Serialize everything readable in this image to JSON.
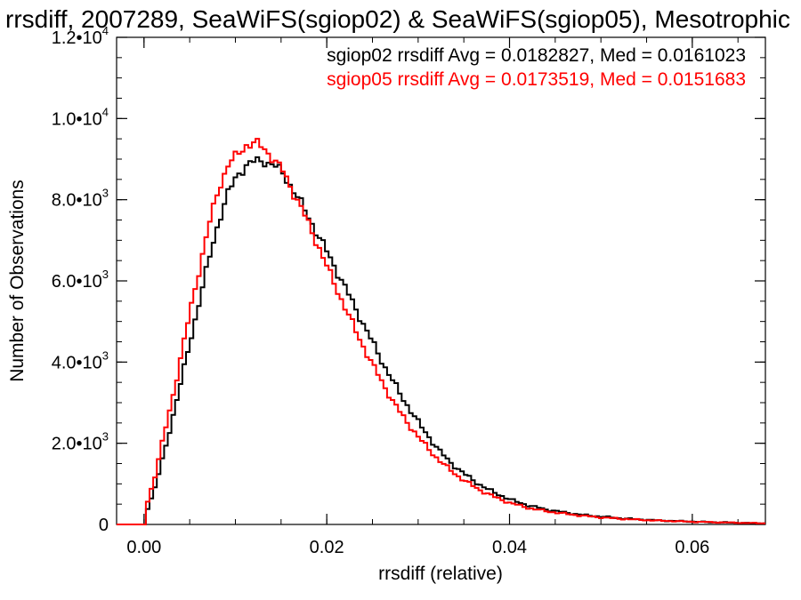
{
  "chart_data": {
    "type": "line",
    "title": "rrsdiff, 2007289, SeaWiFS(sgiop02) & SeaWiFS(sgiop05), Mesotrophic",
    "xlabel": "rrsdiff (relative)",
    "ylabel": "Number of Observations",
    "xlim": [
      -0.003,
      0.068
    ],
    "ylim": [
      0,
      12000
    ],
    "x_ticks": [
      {
        "value": 0.0,
        "label": "0.00"
      },
      {
        "value": 0.02,
        "label": "0.02"
      },
      {
        "value": 0.04,
        "label": "0.04"
      },
      {
        "value": 0.06,
        "label": "0.06"
      }
    ],
    "y_ticks": [
      {
        "value": 0,
        "label": "0"
      },
      {
        "value": 2000,
        "mantissa": "2.0•10",
        "exp": "3"
      },
      {
        "value": 4000,
        "mantissa": "4.0•10",
        "exp": "3"
      },
      {
        "value": 6000,
        "mantissa": "6.0•10",
        "exp": "3"
      },
      {
        "value": 8000,
        "mantissa": "8.0•10",
        "exp": "3"
      },
      {
        "value": 10000,
        "mantissa": "1.0•10",
        "exp": "4"
      },
      {
        "value": 12000,
        "mantissa": "1.2•10",
        "exp": "4"
      }
    ],
    "x_minor_step": 0.005,
    "y_minor_step": 500,
    "legend_placement": "top-right",
    "annotations": [
      {
        "text": "sgiop02 rrsdiff Avg = 0.0182827, Med = 0.0161023",
        "color": "#000000"
      },
      {
        "text": "sgiop05 rrsdiff Avg = 0.0173519, Med = 0.0151683",
        "color": "#ff0000"
      }
    ],
    "series": [
      {
        "color": "#000000",
        "x": [
          -0.003,
          -0.0002,
          0.0,
          0.001,
          0.002,
          0.003,
          0.004,
          0.005,
          0.006,
          0.007,
          0.008,
          0.009,
          0.01,
          0.011,
          0.012,
          0.013,
          0.014,
          0.015,
          0.016,
          0.017,
          0.018,
          0.019,
          0.02,
          0.021,
          0.022,
          0.023,
          0.024,
          0.025,
          0.026,
          0.027,
          0.028,
          0.029,
          0.03,
          0.031,
          0.032,
          0.033,
          0.034,
          0.035,
          0.036,
          0.037,
          0.038,
          0.04,
          0.042,
          0.044,
          0.046,
          0.048,
          0.05,
          0.052,
          0.054,
          0.056,
          0.058,
          0.06,
          0.062,
          0.064,
          0.066,
          0.068
        ],
        "y": [
          0,
          0,
          250,
          900,
          1750,
          2700,
          3650,
          4650,
          5650,
          6600,
          7500,
          8150,
          8600,
          8850,
          8950,
          8950,
          8850,
          8650,
          8300,
          7900,
          7500,
          7050,
          6650,
          6200,
          5750,
          5300,
          4850,
          4400,
          3950,
          3550,
          3150,
          2800,
          2450,
          2150,
          1850,
          1600,
          1400,
          1220,
          1060,
          920,
          800,
          600,
          460,
          360,
          290,
          230,
          190,
          150,
          125,
          100,
          85,
          70,
          55,
          45,
          35,
          25
        ]
      },
      {
        "color": "#ff0000",
        "x": [
          -0.003,
          -0.0002,
          0.0,
          0.001,
          0.002,
          0.003,
          0.004,
          0.005,
          0.006,
          0.007,
          0.008,
          0.009,
          0.01,
          0.011,
          0.012,
          0.013,
          0.014,
          0.015,
          0.016,
          0.017,
          0.018,
          0.019,
          0.02,
          0.021,
          0.022,
          0.023,
          0.024,
          0.025,
          0.026,
          0.027,
          0.028,
          0.029,
          0.03,
          0.031,
          0.032,
          0.033,
          0.034,
          0.035,
          0.036,
          0.037,
          0.038,
          0.04,
          0.042,
          0.044,
          0.046,
          0.048,
          0.05,
          0.052,
          0.054,
          0.056,
          0.058,
          0.06,
          0.062,
          0.064,
          0.066,
          0.068
        ],
        "y": [
          0,
          0,
          400,
          1200,
          2200,
          3200,
          4300,
          5400,
          6450,
          7450,
          8300,
          8850,
          9100,
          9350,
          9400,
          9250,
          9000,
          8700,
          8250,
          7800,
          7300,
          6800,
          6250,
          5750,
          5250,
          4750,
          4300,
          3850,
          3450,
          3050,
          2700,
          2400,
          2100,
          1850,
          1600,
          1400,
          1220,
          1060,
          920,
          800,
          690,
          520,
          400,
          320,
          260,
          210,
          170,
          140,
          115,
          95,
          80,
          65,
          55,
          45,
          35,
          25
        ]
      }
    ]
  }
}
